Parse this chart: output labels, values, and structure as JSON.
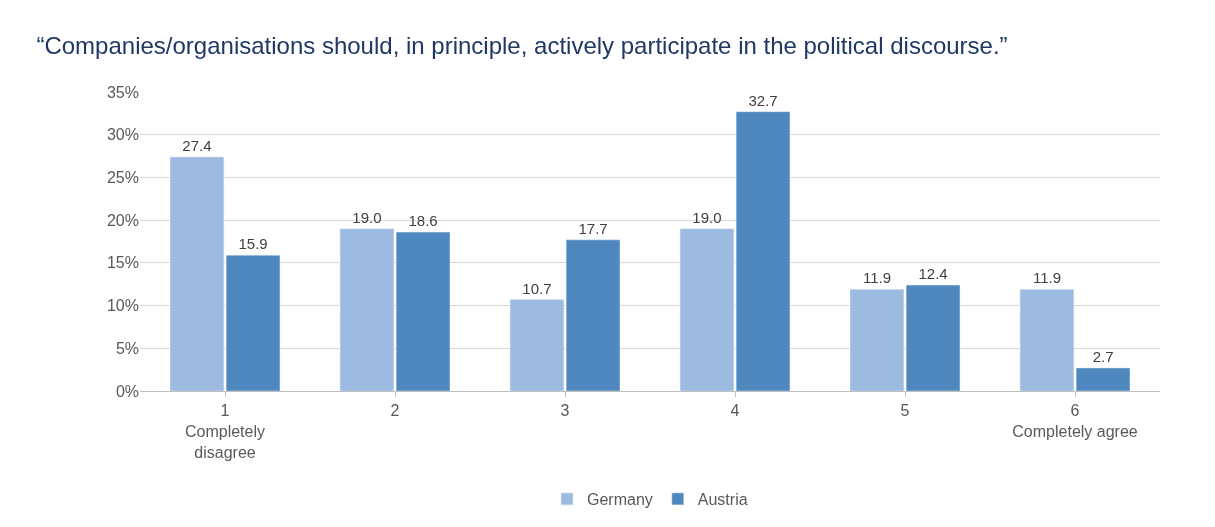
{
  "chart_data": {
    "type": "bar",
    "title": "“Companies/organisations should, in principle, actively participate in the political discourse.”",
    "categories": [
      "1\nCompletely\ndisagree",
      "2",
      "3",
      "4",
      "5",
      "6\nCompletely agree"
    ],
    "series": [
      {
        "name": "Germany",
        "color": "#9dbbe0",
        "values": [
          27.4,
          19.0,
          10.7,
          19.0,
          11.9,
          11.9
        ],
        "value_labels": [
          "27.4",
          "19.0",
          "10.7",
          "19.0",
          "11.9",
          "11.9"
        ]
      },
      {
        "name": "Austria",
        "color": "#4f88bf",
        "values": [
          15.9,
          18.6,
          17.7,
          32.7,
          12.4,
          2.7
        ],
        "value_labels": [
          "15.9",
          "18.6",
          "17.7",
          "32.7",
          "12.4",
          "2.7"
        ]
      }
    ],
    "ylim": [
      0,
      35
    ],
    "yticks": [
      {
        "value": 0,
        "label": "0%"
      },
      {
        "value": 5,
        "label": "5%"
      },
      {
        "value": 10,
        "label": "10%"
      },
      {
        "value": 15,
        "label": "15%"
      },
      {
        "value": 20,
        "label": "20%"
      },
      {
        "value": 25,
        "label": "25%"
      },
      {
        "value": 30,
        "label": "30%"
      },
      {
        "value": 35,
        "label": "35%"
      }
    ],
    "grid": "y",
    "legend": "bottom"
  }
}
